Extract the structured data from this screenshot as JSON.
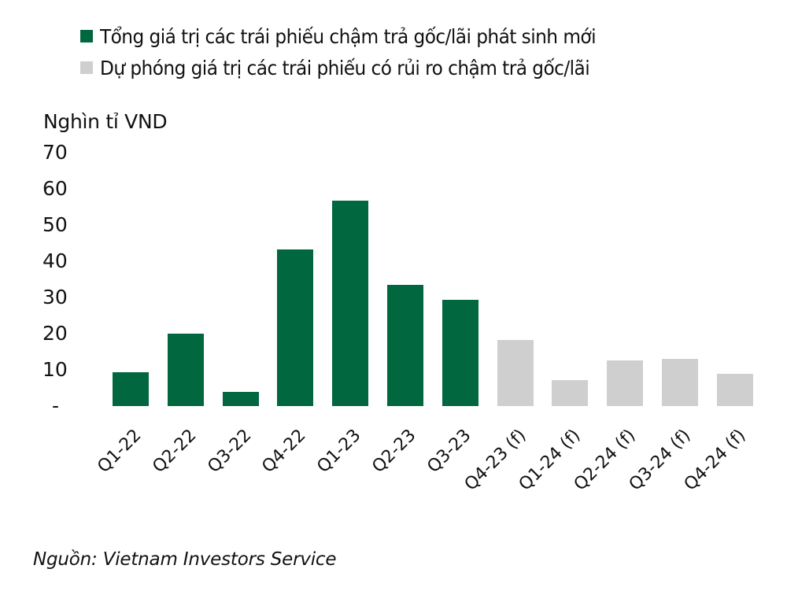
{
  "colors": {
    "actual": "#01673f",
    "forecast": "#cfcfcf"
  },
  "legend": [
    {
      "label": "Tổng giá trị các trái phiếu chậm trả gốc/lãi phát sinh mới",
      "color": "#01673f"
    },
    {
      "label": "Dự phóng giá trị các trái phiếu có rủi ro chậm trả gốc/lãi",
      "color": "#cfcfcf"
    }
  ],
  "y_axis": {
    "title": "Nghìn tỉ VND",
    "ticks": [
      "70",
      "60",
      "50",
      "40",
      "30",
      "20",
      "10",
      "-"
    ]
  },
  "source": "Nguồn: Vietnam Investors Service",
  "chart_data": {
    "type": "bar",
    "title": "",
    "xlabel": "",
    "ylabel": "Nghìn tỉ VND",
    "ylim": [
      0,
      70
    ],
    "yticks": [
      0,
      10,
      20,
      30,
      40,
      50,
      60,
      70
    ],
    "grid": false,
    "legend_position": "top",
    "categories": [
      "Q1-22",
      "Q2-22",
      "Q3-22",
      "Q4-22",
      "Q1-23",
      "Q2-23",
      "Q3-23",
      "Q4-23 (f)",
      "Q1-24 (f)",
      "Q2-24 (f)",
      "Q3-24 (f)",
      "Q4-24 (f)"
    ],
    "series": [
      {
        "name": "Tổng giá trị các trái phiếu chậm trả gốc/lãi phát sinh mới",
        "color": "#01673f",
        "values": [
          9.3,
          20.0,
          3.9,
          43.3,
          56.7,
          33.5,
          29.3,
          null,
          null,
          null,
          null,
          null
        ]
      },
      {
        "name": "Dự phóng giá trị các trái phiếu có rủi ro chậm trả gốc/lãi",
        "color": "#cfcfcf",
        "values": [
          null,
          null,
          null,
          null,
          null,
          null,
          null,
          18.3,
          7.2,
          12.6,
          13.0,
          8.9
        ]
      }
    ],
    "source": "Nguồn: Vietnam Investors Service"
  }
}
